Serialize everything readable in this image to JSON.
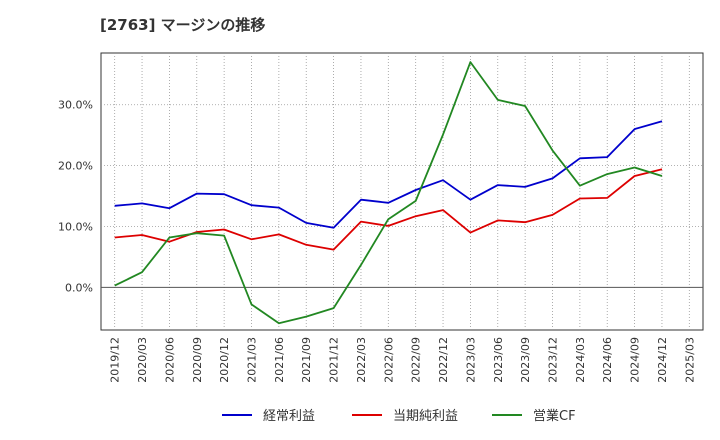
{
  "chart_data": {
    "type": "line",
    "title": "[2763]  マージンの推移",
    "xlabel": "",
    "ylabel": "",
    "x": [
      "2019/12",
      "2020/03",
      "2020/06",
      "2020/09",
      "2020/12",
      "2021/03",
      "2021/06",
      "2021/09",
      "2021/12",
      "2022/03",
      "2022/06",
      "2022/09",
      "2022/12",
      "2023/03",
      "2023/06",
      "2023/09",
      "2023/12",
      "2024/03",
      "2024/06",
      "2024/09",
      "2024/12",
      "2025/03"
    ],
    "ylim": [
      -7,
      38.5
    ],
    "yticks": [
      0,
      10,
      20,
      30
    ],
    "ytick_labels": [
      "0.0%",
      "10.0%",
      "20.0%",
      "30.0%"
    ],
    "grid": true,
    "legend_position": "bottom",
    "series": [
      {
        "name": "経常利益",
        "color": "#0000cc",
        "values": [
          13.4,
          13.8,
          13.0,
          15.4,
          15.3,
          13.5,
          13.1,
          10.6,
          9.8,
          14.4,
          13.9,
          16.0,
          17.6,
          14.4,
          16.8,
          16.5,
          17.9,
          21.2,
          21.4,
          26.0,
          27.3,
          null
        ]
      },
      {
        "name": "当期純利益",
        "color": "#dd0000",
        "values": [
          8.2,
          8.6,
          7.5,
          9.1,
          9.5,
          7.9,
          8.7,
          7.0,
          6.2,
          10.8,
          10.1,
          11.7,
          12.7,
          9.0,
          11.0,
          10.7,
          11.9,
          14.6,
          14.7,
          18.3,
          19.4,
          null
        ]
      },
      {
        "name": "営業CF",
        "color": "#228822",
        "values": [
          0.3,
          2.5,
          8.2,
          8.9,
          8.5,
          -2.8,
          -5.9,
          -4.8,
          -3.4,
          3.7,
          11.2,
          14.2,
          25.1,
          37.0,
          30.8,
          29.8,
          22.5,
          16.7,
          18.6,
          19.7,
          18.3,
          null
        ]
      }
    ]
  }
}
